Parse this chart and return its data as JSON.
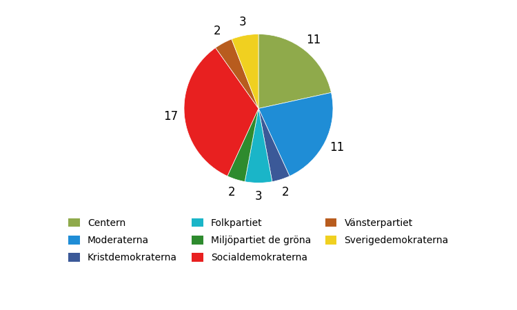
{
  "parties": [
    "Centern",
    "Moderaterna",
    "Kristdemokraterna",
    "Folkpartiet",
    "Miljöpartiet de gröna",
    "Socialdemokraterna",
    "Vänsterpartiet",
    "Sverigedemokraterna"
  ],
  "values": [
    11,
    11,
    2,
    3,
    2,
    17,
    2,
    3
  ],
  "colors": [
    "#8faa4b",
    "#1f8dd6",
    "#3b5998",
    "#1ab5c8",
    "#2e8b2e",
    "#e82020",
    "#b85c1e",
    "#f0d020"
  ],
  "startangle": 90,
  "figsize": [
    7.5,
    4.5
  ],
  "dpi": 100
}
